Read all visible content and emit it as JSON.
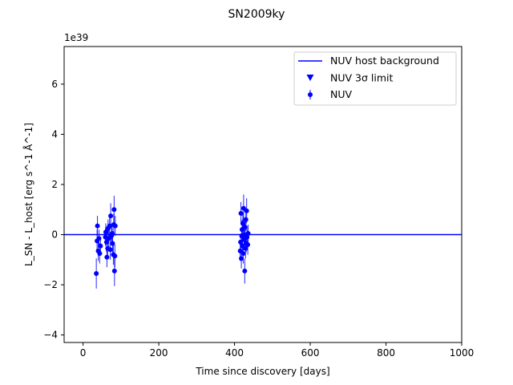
{
  "chart_data": {
    "type": "scatter",
    "title": "SN2009ky",
    "xlabel": "Time since discovery [days]",
    "ylabel": "L_SN - L_host [erg s^-1 Å^-1]",
    "y_offset_label": "1e39",
    "xlim": [
      -50,
      1000
    ],
    "ylim": [
      -4.3,
      7.5
    ],
    "x_ticks": [
      0,
      200,
      400,
      600,
      800,
      1000
    ],
    "y_ticks": [
      -4,
      -2,
      0,
      2,
      4,
      6
    ],
    "grid": false,
    "legend_position": "top-right",
    "series": [
      {
        "name": "NUV host background",
        "kind": "hline",
        "color": "#0000ff",
        "y": 0
      },
      {
        "name": "NUV 3σ limit",
        "kind": "triangle-down",
        "color": "#0000ff",
        "points": []
      },
      {
        "name": "NUV",
        "kind": "errorbar",
        "color": "#0000ff",
        "points": [
          {
            "x": 35,
            "y": -1.55,
            "err": 0.6
          },
          {
            "x": 37,
            "y": -0.25,
            "err": 0.45
          },
          {
            "x": 38,
            "y": 0.35,
            "err": 0.4
          },
          {
            "x": 40,
            "y": -0.65,
            "err": 0.4
          },
          {
            "x": 42,
            "y": -0.15,
            "err": 0.35
          },
          {
            "x": 44,
            "y": -0.75,
            "err": 0.4
          },
          {
            "x": 46,
            "y": -0.45,
            "err": 0.35
          },
          {
            "x": 59,
            "y": -0.1,
            "err": 0.35
          },
          {
            "x": 60,
            "y": 0.1,
            "err": 0.35
          },
          {
            "x": 62,
            "y": -0.3,
            "err": 0.4
          },
          {
            "x": 63,
            "y": -0.9,
            "err": 0.4
          },
          {
            "x": 65,
            "y": -0.55,
            "err": 0.35
          },
          {
            "x": 66,
            "y": 0.25,
            "err": 0.35
          },
          {
            "x": 68,
            "y": -0.15,
            "err": 0.4
          },
          {
            "x": 70,
            "y": 0.35,
            "err": 0.4
          },
          {
            "x": 72,
            "y": -0.6,
            "err": 0.4
          },
          {
            "x": 73,
            "y": 0.75,
            "err": 0.5
          },
          {
            "x": 75,
            "y": -0.05,
            "err": 0.35
          },
          {
            "x": 77,
            "y": 0.05,
            "err": 0.4
          },
          {
            "x": 78,
            "y": -0.35,
            "err": 0.45
          },
          {
            "x": 80,
            "y": -0.8,
            "err": 0.4
          },
          {
            "x": 81,
            "y": 0.4,
            "err": 0.45
          },
          {
            "x": 82,
            "y": 1.0,
            "err": 0.55
          },
          {
            "x": 83,
            "y": -1.45,
            "err": 0.6
          },
          {
            "x": 84,
            "y": -0.85,
            "err": 0.45
          },
          {
            "x": 85,
            "y": 0.35,
            "err": 0.4
          },
          {
            "x": 415,
            "y": -0.65,
            "err": 0.4
          },
          {
            "x": 416,
            "y": -0.3,
            "err": 0.35
          },
          {
            "x": 417,
            "y": 0.85,
            "err": 0.45
          },
          {
            "x": 418,
            "y": -0.95,
            "err": 0.4
          },
          {
            "x": 419,
            "y": -0.05,
            "err": 0.35
          },
          {
            "x": 420,
            "y": 0.2,
            "err": 0.4
          },
          {
            "x": 421,
            "y": -0.45,
            "err": 0.35
          },
          {
            "x": 422,
            "y": 0.45,
            "err": 0.4
          },
          {
            "x": 423,
            "y": -0.75,
            "err": 0.4
          },
          {
            "x": 424,
            "y": 1.05,
            "err": 0.55
          },
          {
            "x": 425,
            "y": -0.2,
            "err": 0.35
          },
          {
            "x": 426,
            "y": 0.0,
            "err": 0.35
          },
          {
            "x": 427,
            "y": -1.45,
            "err": 0.5
          },
          {
            "x": 428,
            "y": 0.3,
            "err": 0.4
          },
          {
            "x": 429,
            "y": -0.55,
            "err": 0.4
          },
          {
            "x": 430,
            "y": 0.6,
            "err": 0.45
          },
          {
            "x": 431,
            "y": -0.35,
            "err": 0.35
          },
          {
            "x": 432,
            "y": 0.95,
            "err": 0.5
          },
          {
            "x": 433,
            "y": -0.1,
            "err": 0.35
          },
          {
            "x": 435,
            "y": -0.4,
            "err": 0.4
          },
          {
            "x": 436,
            "y": 0.05,
            "err": 0.35
          }
        ]
      }
    ]
  }
}
